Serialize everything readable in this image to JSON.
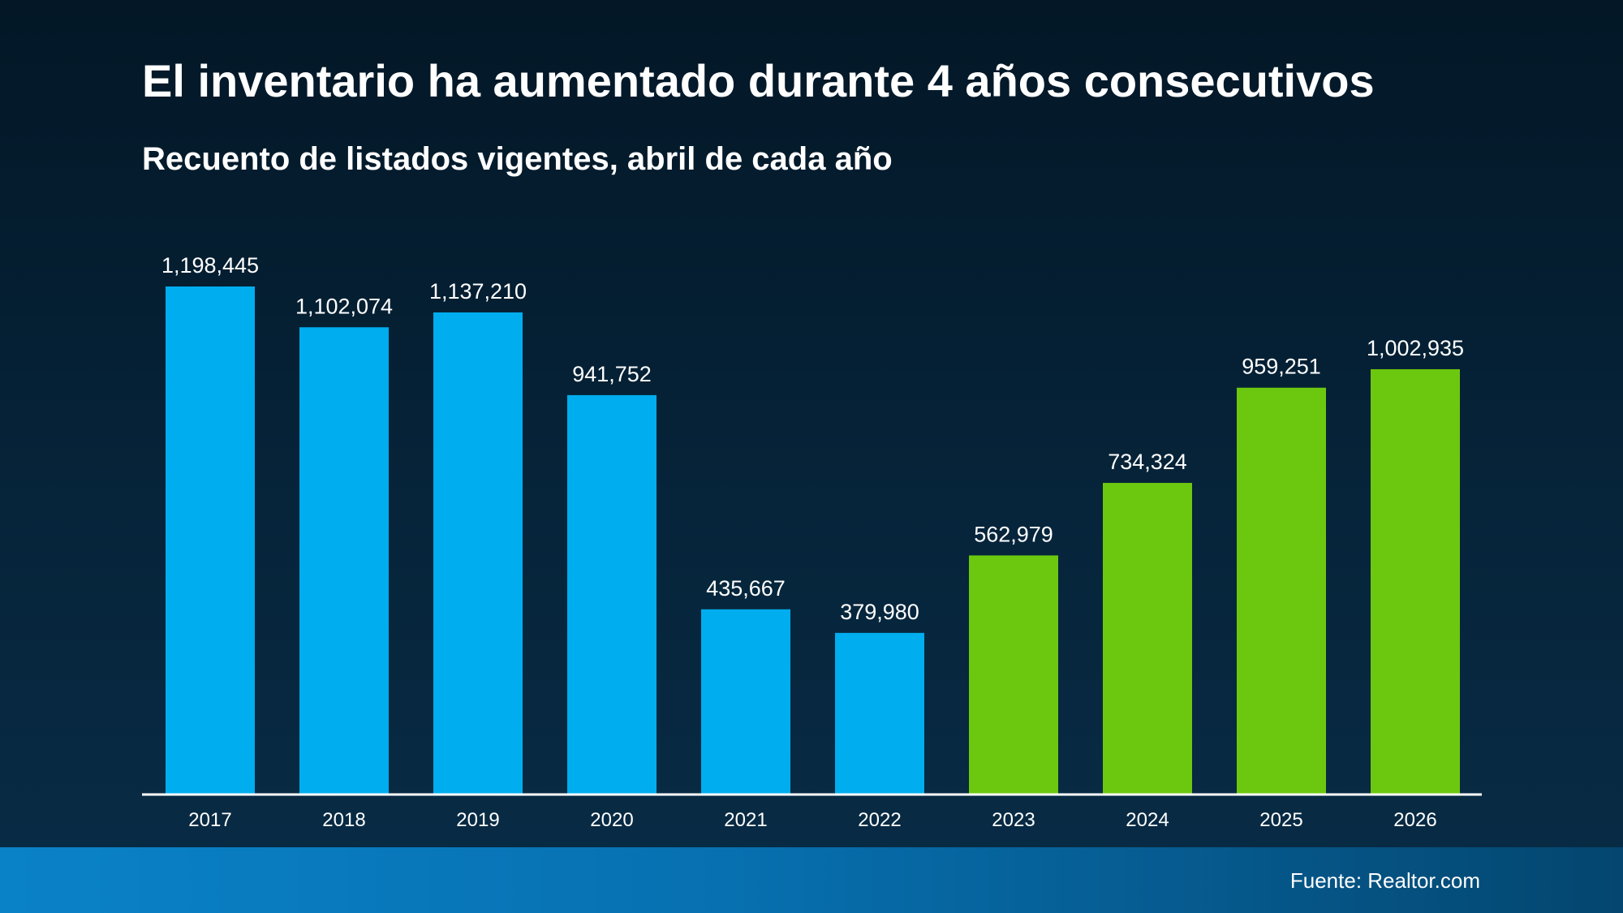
{
  "header": {
    "title": "El inventario ha aumentado durante 4 años consecutivos",
    "subtitle": "Recuento de listados vigentes, abril de cada año"
  },
  "footer": {
    "source": "Fuente: Realtor.com"
  },
  "colors": {
    "decline": "#00adee",
    "increase": "#6cc80f",
    "axis": "#ffffff"
  },
  "chart_data": {
    "type": "bar",
    "title": "El inventario ha aumentado durante 4 años consecutivos",
    "subtitle": "Recuento de listados vigentes, abril de cada año",
    "categories": [
      "2017",
      "2018",
      "2019",
      "2020",
      "2021",
      "2022",
      "2023",
      "2024",
      "2025",
      "2026"
    ],
    "values": [
      1198445,
      1102074,
      1137210,
      941752,
      435667,
      379980,
      562979,
      734324,
      959251,
      1002935
    ],
    "value_labels": [
      "1,198,445",
      "1,102,074",
      "1,137,210",
      "941,752",
      "435,667",
      "379,980",
      "562,979",
      "734,324",
      "959,251",
      "1,002,935"
    ],
    "bar_colors": [
      "#00adee",
      "#00adee",
      "#00adee",
      "#00adee",
      "#00adee",
      "#00adee",
      "#6cc80f",
      "#6cc80f",
      "#6cc80f",
      "#6cc80f"
    ],
    "xlabel": "",
    "ylabel": "",
    "ylim": [
      0,
      1198445
    ],
    "grid": false,
    "legend": "none"
  }
}
